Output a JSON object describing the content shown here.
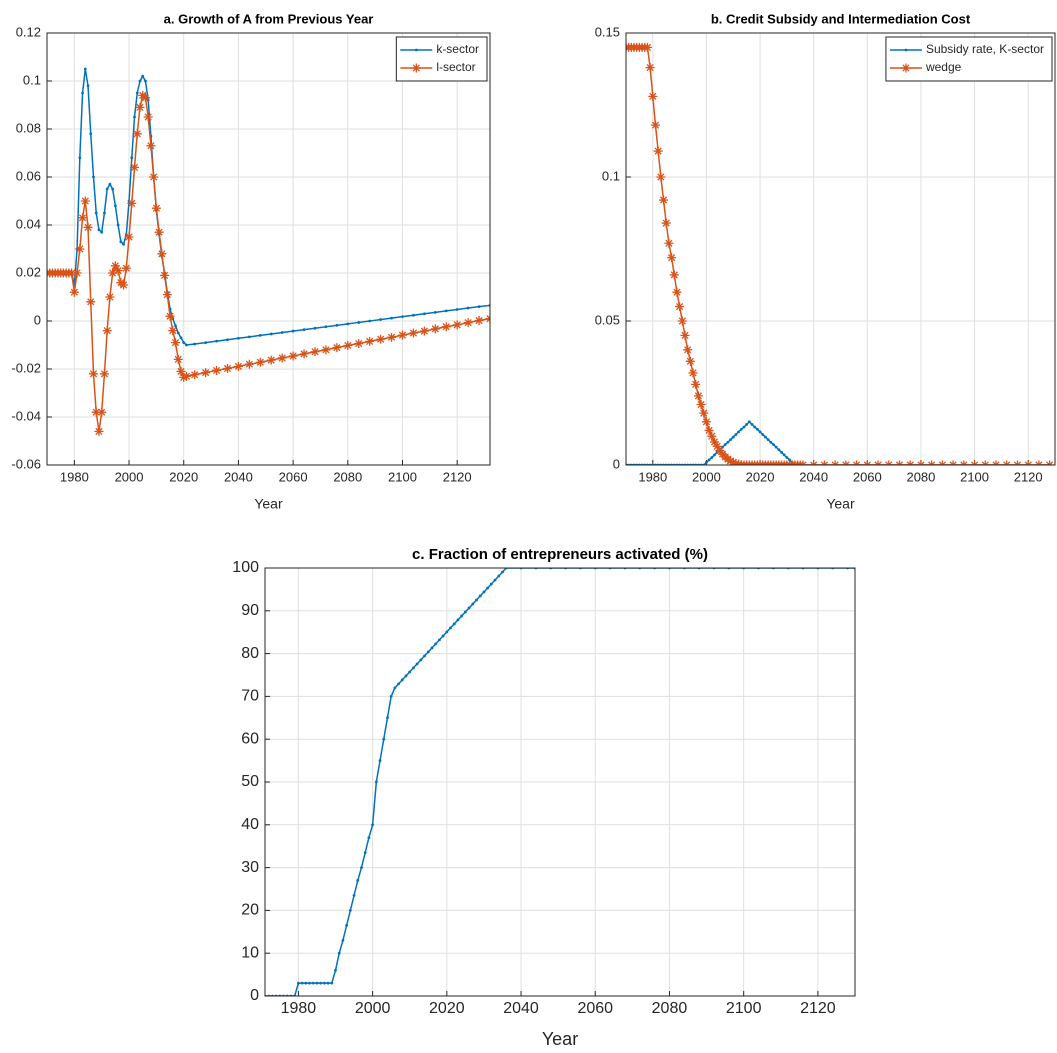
{
  "chart_data": [
    {
      "type": "line",
      "title": "a. Growth of A from Previous Year",
      "xlabel": "Year",
      "x": [
        1970,
        1971,
        1972,
        1973,
        1974,
        1975,
        1976,
        1977,
        1978,
        1979,
        1980,
        1981,
        1982,
        1983,
        1984,
        1985,
        1986,
        1987,
        1988,
        1989,
        1990,
        1991,
        1992,
        1993,
        1994,
        1995,
        1996,
        1997,
        1998,
        1999,
        2000,
        2001,
        2002,
        2003,
        2004,
        2005,
        2006,
        2007,
        2008,
        2009,
        2010,
        2011,
        2012,
        2013,
        2014,
        2015,
        2016,
        2017,
        2018,
        2019,
        2020,
        2021,
        2024,
        2028,
        2032,
        2036,
        2040,
        2044,
        2048,
        2052,
        2056,
        2060,
        2064,
        2068,
        2072,
        2076,
        2080,
        2084,
        2088,
        2092,
        2096,
        2100,
        2104,
        2108,
        2112,
        2116,
        2120,
        2124,
        2128,
        2132
      ],
      "series": [
        {
          "name": "k-sector",
          "color": "#0072bd",
          "marker": "dot",
          "values": [
            0.02,
            0.02,
            0.02,
            0.02,
            0.02,
            0.02,
            0.02,
            0.02,
            0.02,
            0.02,
            0.015,
            0.03,
            0.068,
            0.095,
            0.105,
            0.098,
            0.078,
            0.06,
            0.045,
            0.038,
            0.037,
            0.045,
            0.055,
            0.057,
            0.055,
            0.048,
            0.04,
            0.033,
            0.032,
            0.036,
            0.05,
            0.068,
            0.085,
            0.095,
            0.1,
            0.102,
            0.1,
            0.092,
            0.077,
            0.06,
            0.046,
            0.036,
            0.027,
            0.02,
            0.012,
            0.005,
            0.001,
            -0.002,
            -0.005,
            -0.007,
            -0.009,
            -0.01,
            -0.0096,
            -0.009,
            -0.0084,
            -0.0078,
            -0.0072,
            -0.0066,
            -0.006,
            -0.0054,
            -0.0048,
            -0.0042,
            -0.0036,
            -0.003,
            -0.0024,
            -0.0018,
            -0.0012,
            -0.0006,
            0,
            0.0006,
            0.0012,
            0.0018,
            0.0024,
            0.003,
            0.0036,
            0.0042,
            0.0048,
            0.0054,
            0.006,
            0.0065
          ]
        },
        {
          "name": "l-sector",
          "color": "#d95319",
          "marker": "asterisk",
          "values": [
            0.02,
            0.02,
            0.02,
            0.02,
            0.02,
            0.02,
            0.02,
            0.02,
            0.02,
            0.02,
            0.012,
            0.02,
            0.03,
            0.043,
            0.05,
            0.039,
            0.008,
            -0.022,
            -0.038,
            -0.046,
            -0.038,
            -0.022,
            -0.004,
            0.01,
            0.02,
            0.023,
            0.021,
            0.016,
            0.015,
            0.022,
            0.035,
            0.049,
            0.064,
            0.078,
            0.089,
            0.094,
            0.093,
            0.085,
            0.073,
            0.06,
            0.047,
            0.037,
            0.028,
            0.019,
            0.011,
            0.002,
            -0.004,
            -0.009,
            -0.016,
            -0.021,
            -0.0235,
            -0.023,
            -0.0224,
            -0.0215,
            -0.0206,
            -0.0198,
            -0.0189,
            -0.018,
            -0.0172,
            -0.0163,
            -0.0154,
            -0.0146,
            -0.0137,
            -0.0128,
            -0.012,
            -0.0111,
            -0.0102,
            -0.0094,
            -0.0085,
            -0.0076,
            -0.0068,
            -0.0059,
            -0.005,
            -0.0042,
            -0.0033,
            -0.0024,
            -0.0016,
            -0.0007,
            0.0002,
            0.001
          ]
        }
      ],
      "xlim": [
        1970,
        2132
      ],
      "ylim": [
        -0.06,
        0.12
      ],
      "xticks": [
        1980,
        2000,
        2020,
        2040,
        2060,
        2080,
        2100,
        2120
      ],
      "yticks": [
        -0.06,
        -0.04,
        -0.02,
        0,
        0.02,
        0.04,
        0.06,
        0.08,
        0.1,
        0.12
      ],
      "grid": true,
      "legend": "upper-right"
    },
    {
      "type": "line",
      "title": "b. Credit Subsidy and Intermediation Cost",
      "xlabel": "Year",
      "x": [
        1970,
        1971,
        1972,
        1973,
        1974,
        1975,
        1976,
        1977,
        1978,
        1979,
        1980,
        1981,
        1982,
        1983,
        1984,
        1985,
        1986,
        1987,
        1988,
        1989,
        1990,
        1991,
        1992,
        1993,
        1994,
        1995,
        1996,
        1997,
        1998,
        1999,
        2000,
        2001,
        2002,
        2003,
        2004,
        2005,
        2006,
        2007,
        2008,
        2009,
        2010,
        2011,
        2012,
        2013,
        2014,
        2015,
        2016,
        2017,
        2018,
        2019,
        2020,
        2021,
        2022,
        2023,
        2024,
        2025,
        2026,
        2027,
        2028,
        2029,
        2030,
        2031,
        2032,
        2033,
        2034,
        2035,
        2036,
        2040,
        2044,
        2048,
        2052,
        2056,
        2060,
        2064,
        2068,
        2072,
        2076,
        2080,
        2084,
        2088,
        2092,
        2096,
        2100,
        2104,
        2108,
        2112,
        2116,
        2120,
        2124,
        2128
      ],
      "series": [
        {
          "name": "Subsidy rate, K-sector",
          "color": "#0072bd",
          "marker": "dot",
          "values": [
            0,
            0,
            0,
            0,
            0,
            0,
            0,
            0,
            0,
            0,
            0,
            0,
            0,
            0,
            0,
            0,
            0,
            0,
            0,
            0,
            0,
            0,
            0,
            0,
            0,
            0,
            0,
            0,
            0,
            0,
            0.0009,
            0.0018,
            0.0026,
            0.0035,
            0.0044,
            0.0053,
            0.0062,
            0.0071,
            0.0079,
            0.0088,
            0.0097,
            0.0106,
            0.0115,
            0.0124,
            0.0132,
            0.0141,
            0.015,
            0.0141,
            0.0132,
            0.0124,
            0.0115,
            0.0106,
            0.0097,
            0.0088,
            0.0079,
            0.0071,
            0.0062,
            0.0053,
            0.0044,
            0.0035,
            0.0026,
            0.0018,
            0.0009,
            0,
            0,
            0,
            0,
            0,
            0,
            0,
            0,
            0,
            0,
            0,
            0,
            0,
            0,
            0,
            0,
            0,
            0,
            0,
            0,
            0,
            0,
            0,
            0,
            0,
            0,
            0
          ]
        },
        {
          "name": "wedge",
          "color": "#d95319",
          "marker": "asterisk",
          "values": [
            0.145,
            0.145,
            0.145,
            0.145,
            0.145,
            0.145,
            0.145,
            0.145,
            0.145,
            0.138,
            0.128,
            0.118,
            0.109,
            0.1,
            0.092,
            0.084,
            0.077,
            0.072,
            0.066,
            0.06,
            0.055,
            0.05,
            0.045,
            0.04,
            0.036,
            0.032,
            0.028,
            0.024,
            0.021,
            0.018,
            0.015,
            0.012,
            0.01,
            0.008,
            0.0065,
            0.005,
            0.0038,
            0.0028,
            0.002,
            0.0014,
            0.0009,
            0.0005,
            0.0003,
            0.0001,
            0,
            0,
            0,
            0,
            0,
            0,
            0,
            0,
            0,
            0,
            0,
            0,
            0,
            0,
            0,
            0,
            0,
            0,
            0,
            0,
            0,
            0,
            0,
            0,
            0,
            0,
            0,
            0,
            0,
            0,
            0,
            0,
            0,
            0,
            0,
            0,
            0,
            0,
            0,
            0,
            0,
            0,
            0,
            0,
            0,
            0
          ]
        }
      ],
      "xlim": [
        1970,
        2130
      ],
      "ylim": [
        0,
        0.15
      ],
      "xticks": [
        1980,
        2000,
        2020,
        2040,
        2060,
        2080,
        2100,
        2120
      ],
      "yticks": [
        0,
        0.05,
        0.1,
        0.15
      ],
      "grid": true,
      "legend": "upper-right"
    },
    {
      "type": "line",
      "title": "c. Fraction of entrepreneurs activated (%)",
      "xlabel": "Year",
      "x": [
        1971,
        1972,
        1973,
        1974,
        1975,
        1976,
        1977,
        1978,
        1979,
        1980,
        1981,
        1982,
        1983,
        1984,
        1985,
        1986,
        1987,
        1988,
        1989,
        1990,
        1991,
        1992,
        1993,
        1994,
        1995,
        1996,
        1997,
        1998,
        1999,
        2000,
        2001,
        2002,
        2003,
        2004,
        2005,
        2006,
        2007,
        2008,
        2009,
        2010,
        2011,
        2012,
        2013,
        2014,
        2015,
        2016,
        2017,
        2018,
        2019,
        2020,
        2021,
        2022,
        2023,
        2024,
        2025,
        2026,
        2027,
        2028,
        2029,
        2030,
        2031,
        2032,
        2033,
        2034,
        2035,
        2036,
        2040,
        2044,
        2048,
        2052,
        2056,
        2060,
        2064,
        2068,
        2072,
        2076,
        2080,
        2084,
        2088,
        2092,
        2096,
        2100,
        2104,
        2108,
        2112,
        2116,
        2120,
        2124,
        2128,
        2130
      ],
      "series": [
        {
          "color": "#0072bd",
          "marker": "dot",
          "values": [
            0,
            0,
            0,
            0,
            0,
            0,
            0,
            0,
            0,
            3,
            3,
            3,
            3,
            3,
            3,
            3,
            3,
            3,
            3,
            6,
            10,
            13,
            16.5,
            20,
            23.5,
            27,
            30,
            33.5,
            37,
            40,
            50,
            55,
            60,
            65,
            70,
            72,
            72.93,
            73.87,
            74.8,
            75.73,
            76.67,
            77.6,
            78.53,
            79.47,
            80.4,
            81.33,
            82.27,
            83.2,
            84.13,
            85.07,
            86,
            86.93,
            87.87,
            88.8,
            89.73,
            90.67,
            91.6,
            92.53,
            93.47,
            94.4,
            95.33,
            96.27,
            97.2,
            98.13,
            99.07,
            100,
            100,
            100,
            100,
            100,
            100,
            100,
            100,
            100,
            100,
            100,
            100,
            100,
            100,
            100,
            100,
            100,
            100,
            100,
            100,
            100,
            100,
            100,
            100,
            100
          ]
        }
      ],
      "xlim": [
        1971,
        2130
      ],
      "ylim": [
        0,
        100
      ],
      "xticks": [
        1980,
        2000,
        2020,
        2040,
        2060,
        2080,
        2100,
        2120
      ],
      "yticks": [
        0,
        10,
        20,
        30,
        40,
        50,
        60,
        70,
        80,
        90,
        100
      ],
      "grid": true
    }
  ]
}
